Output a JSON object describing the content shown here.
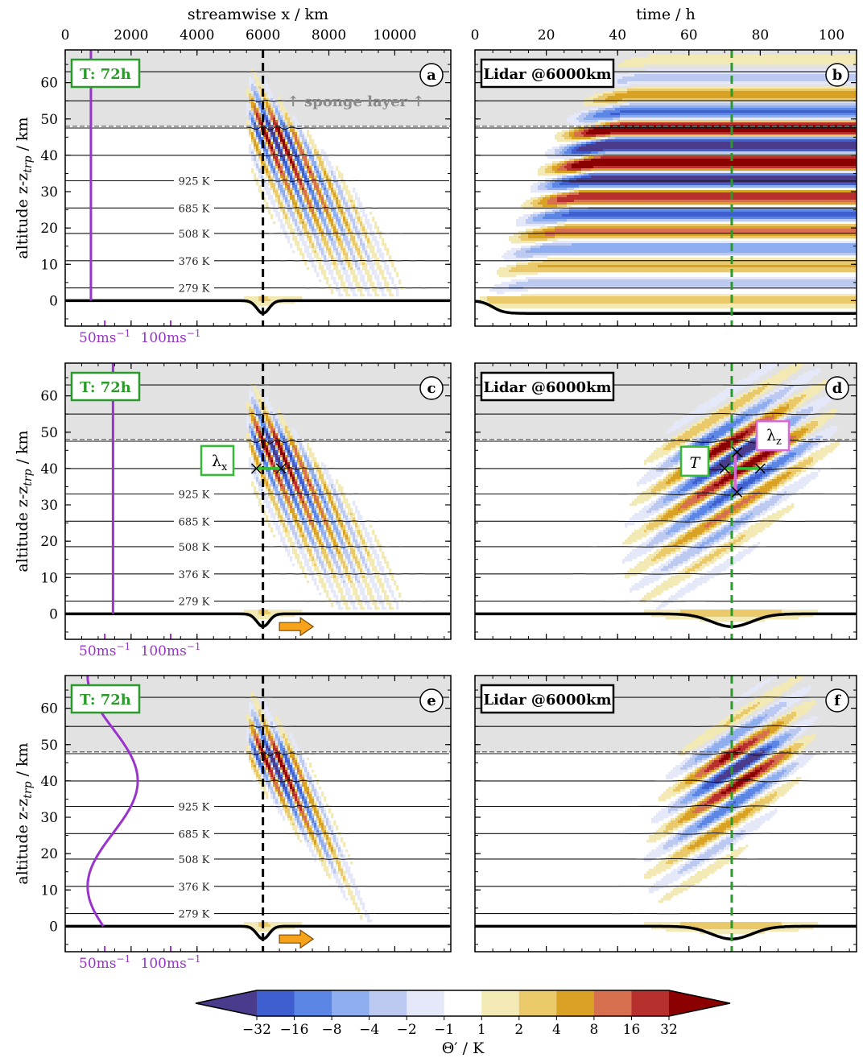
{
  "chart_data": {
    "type": "heatmap",
    "top_axes": {
      "left": {
        "title": "streamwise x / km",
        "ticks": [
          "0",
          "2000",
          "4000",
          "6000",
          "8000",
          "10000"
        ],
        "values": [
          0,
          2000,
          4000,
          6000,
          8000,
          10000
        ],
        "xlim": [
          0,
          11700
        ]
      },
      "right": {
        "title": "time / h",
        "ticks": [
          "0",
          "20",
          "40",
          "60",
          "80",
          "100"
        ],
        "values": [
          0,
          20,
          40,
          60,
          80,
          100
        ],
        "xlim": [
          0,
          107
        ]
      }
    },
    "ylabel": "altitude z-z",
    "ylabel_sub": "trp",
    "ylabel_unit": " / km",
    "ylim": [
      -7,
      69
    ],
    "yticks": [
      "0",
      "10",
      "20",
      "30",
      "40",
      "50",
      "60"
    ],
    "ytick_values": [
      0,
      10,
      20,
      30,
      40,
      50,
      60
    ],
    "sponge_bottom_km": 48,
    "sponge_text": "↑ sponge layer ↑",
    "isentrope_levels_km": [
      3.5,
      11,
      18.5,
      25.5,
      33,
      40,
      47.5,
      55,
      63
    ],
    "isentrope_labels": [
      {
        "text": "279 K",
        "z": 3.5
      },
      {
        "text": "376 K",
        "z": 11
      },
      {
        "text": "508 K",
        "z": 18.5
      },
      {
        "text": "685 K",
        "z": 25.5
      },
      {
        "text": "925 K",
        "z": 33
      }
    ],
    "marker_x_km": 6000,
    "marker_time_h": 72,
    "mountain_depth_km": 3.5,
    "wind_ticks": [
      "50ms",
      "100ms"
    ],
    "wind_tick_sup": "−1",
    "wind_tick_x_km": [
      1200,
      3200
    ],
    "panels": [
      {
        "id": "a",
        "kind": "space",
        "badge": "T: 72h",
        "wind": "constant",
        "wind_x_km": 780,
        "arrow": false,
        "sponge_label": true
      },
      {
        "id": "b",
        "kind": "time",
        "badge": "Lidar @6000km",
        "regime": "steady"
      },
      {
        "id": "c",
        "kind": "space",
        "badge": "T: 72h",
        "wind": "constant",
        "wind_x_km": 1450,
        "arrow": true,
        "annotation": "λ",
        "annotation_sub": "x"
      },
      {
        "id": "d",
        "kind": "time",
        "badge": "Lidar @6000km",
        "regime": "packet",
        "annotations": [
          {
            "text": "T"
          },
          {
            "text": "λ",
            "sub": "z"
          }
        ]
      },
      {
        "id": "e",
        "kind": "space",
        "badge": "T: 72h",
        "wind": "varying",
        "arrow": true
      },
      {
        "id": "f",
        "kind": "time",
        "badge": "Lidar @6000km",
        "regime": "packet_weak"
      }
    ],
    "colorbar": {
      "title": "Θ′ / K",
      "ticks": [
        "−32",
        "−16",
        "−8",
        "−4",
        "−2",
        "−1",
        "1",
        "2",
        "4",
        "8",
        "16",
        "32"
      ],
      "colors": [
        "#4a3b8c",
        "#3f5fd0",
        "#5c86e6",
        "#8eaef0",
        "#bccaf2",
        "#e5e8f8",
        "#ffffff",
        "#f3e9b5",
        "#eac96a",
        "#d9a224",
        "#d6704e",
        "#b8302e",
        "#8b0000"
      ],
      "extend": "both"
    }
  }
}
